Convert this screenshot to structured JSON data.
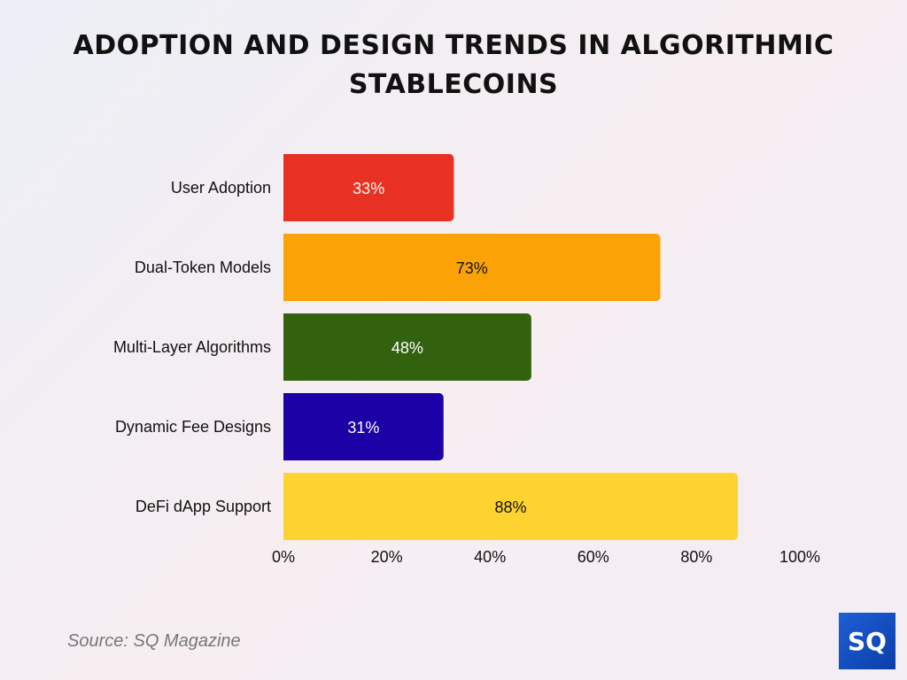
{
  "title": "ADOPTION AND DESIGN TRENDS IN ALGORITHMIC STABLECOINS",
  "source": "Source: SQ Magazine",
  "logo_text": "SQ",
  "chart_data": {
    "type": "bar",
    "orientation": "horizontal",
    "title": "ADOPTION AND DESIGN TRENDS IN ALGORITHMIC STABLECOINS",
    "categories": [
      "User Adoption",
      "Dual-Token Models",
      "Multi-Layer Algorithms",
      "Dynamic Fee Designs",
      "DeFi dApp Support"
    ],
    "values": [
      33,
      73,
      48,
      31,
      88
    ],
    "data_labels": [
      "33%",
      "73%",
      "48%",
      "31%",
      "88%"
    ],
    "colors": [
      "#e83123",
      "#fba306",
      "#33620f",
      "#1c02a6",
      "#fed330"
    ],
    "label_colors": [
      "#ffffff",
      "#111111",
      "#ffffff",
      "#ffffff",
      "#111111"
    ],
    "xlim": [
      0,
      100
    ],
    "x_ticks": [
      "0%",
      "20%",
      "40%",
      "60%",
      "80%",
      "100%"
    ],
    "grid": false,
    "xlabel": "",
    "ylabel": ""
  }
}
